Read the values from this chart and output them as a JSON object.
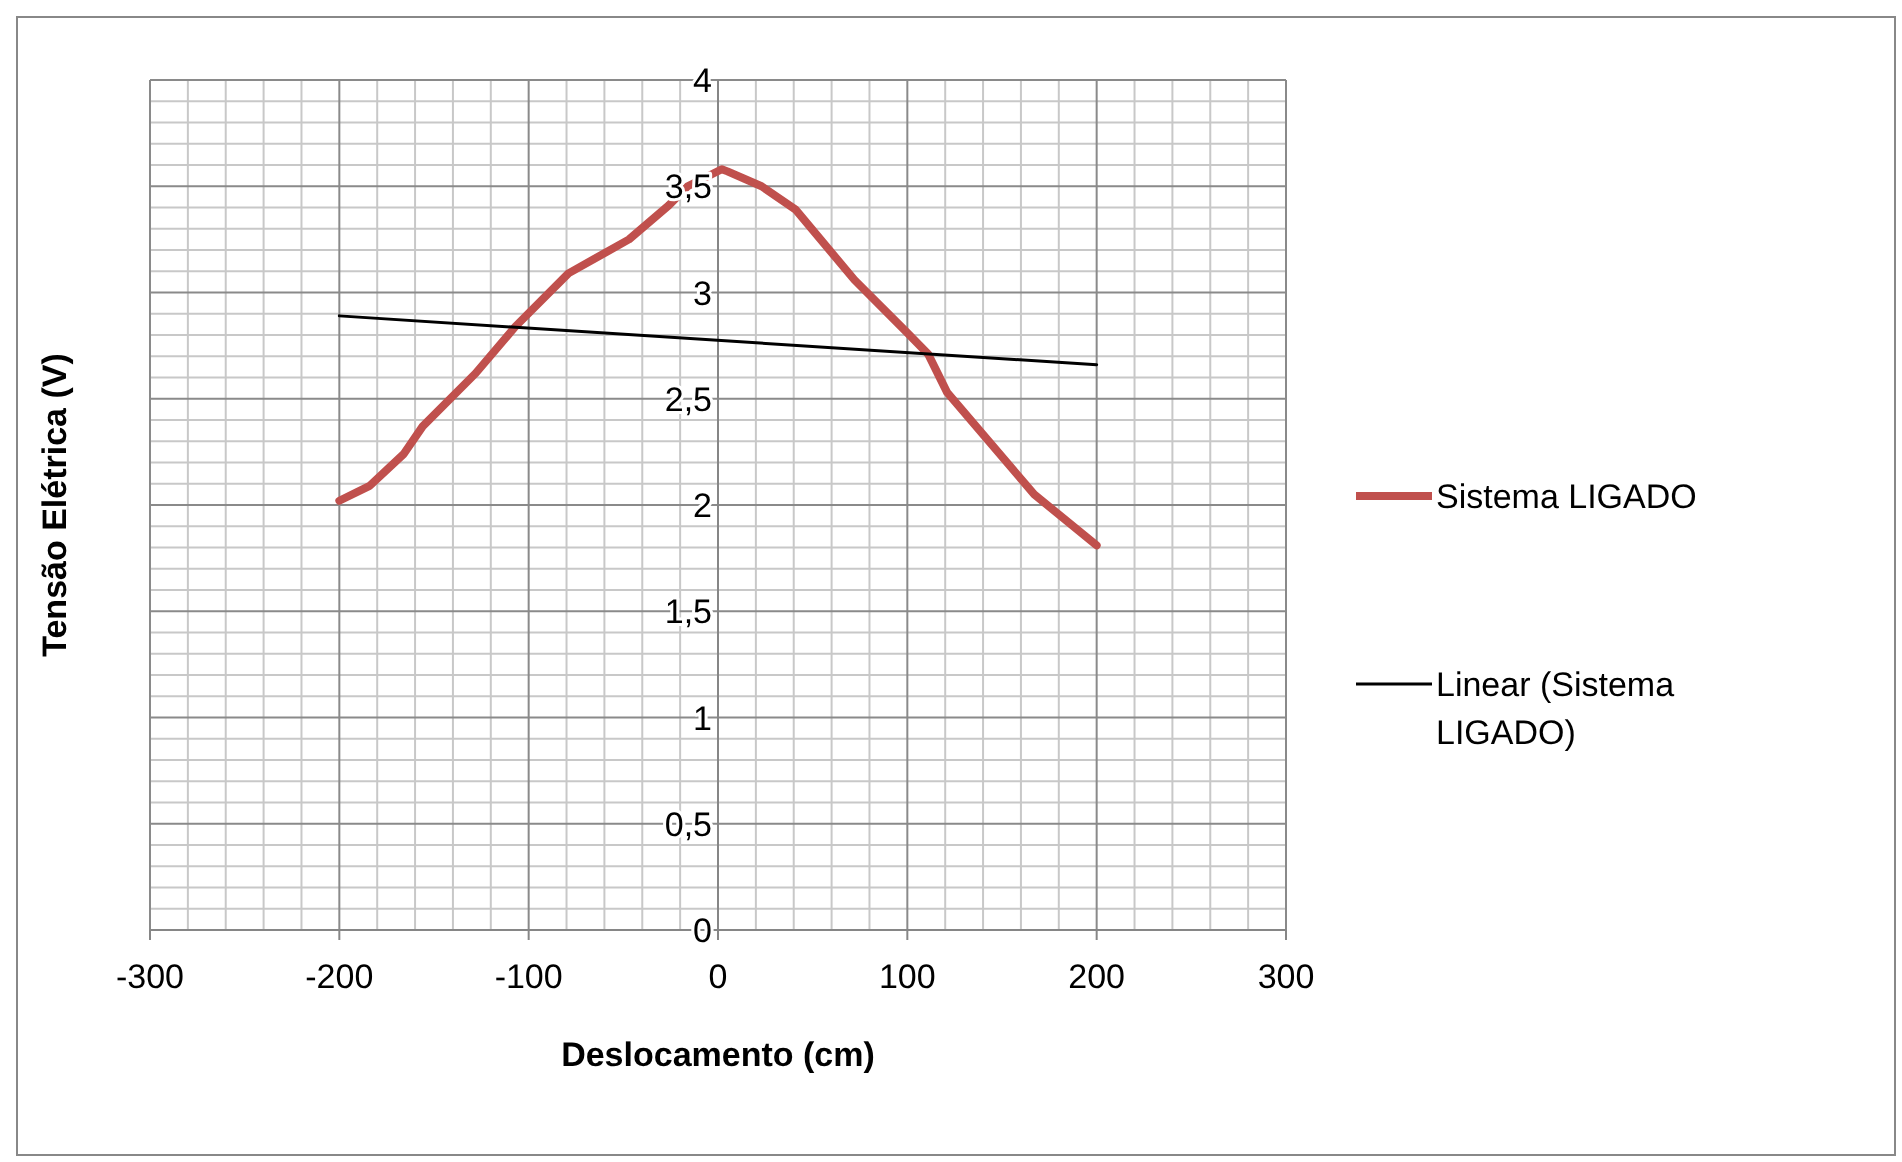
{
  "chart_data": {
    "type": "line",
    "xlabel": "Deslocamento (cm)",
    "ylabel": "Tensão Elétrica (V)",
    "xlim": [
      -300,
      300
    ],
    "xticks": [
      -300,
      -200,
      -100,
      0,
      100,
      200,
      300
    ],
    "ylim": [
      0,
      4
    ],
    "yticks": [
      0,
      {
        "value": 0.5,
        "label": "0,5"
      },
      1,
      {
        "value": 1.5,
        "label": "1,5"
      },
      2,
      {
        "value": 2.5,
        "label": "2,5"
      },
      3,
      {
        "value": 3.5,
        "label": "3,5"
      },
      4
    ],
    "grid": true,
    "legend": "right",
    "series": [
      {
        "name": "Sistema LIGADO",
        "color": "#c0504d",
        "x": [
          -200,
          -184,
          -166,
          -156,
          -128,
          -107,
          -79,
          -47,
          -26,
          -16,
          2,
          5,
          23,
          41,
          72,
          100,
          111,
          121,
          167,
          200
        ],
        "values": [
          2.02,
          2.09,
          2.24,
          2.37,
          2.62,
          2.84,
          3.09,
          3.25,
          3.41,
          3.5,
          3.58,
          3.57,
          3.5,
          3.39,
          3.06,
          2.81,
          2.71,
          2.53,
          2.05,
          1.81
        ]
      },
      {
        "name": "Linear (Sistema LIGADO)",
        "color": "#000000",
        "x": [
          -200,
          200
        ],
        "values": [
          2.89,
          2.66
        ]
      }
    ]
  }
}
